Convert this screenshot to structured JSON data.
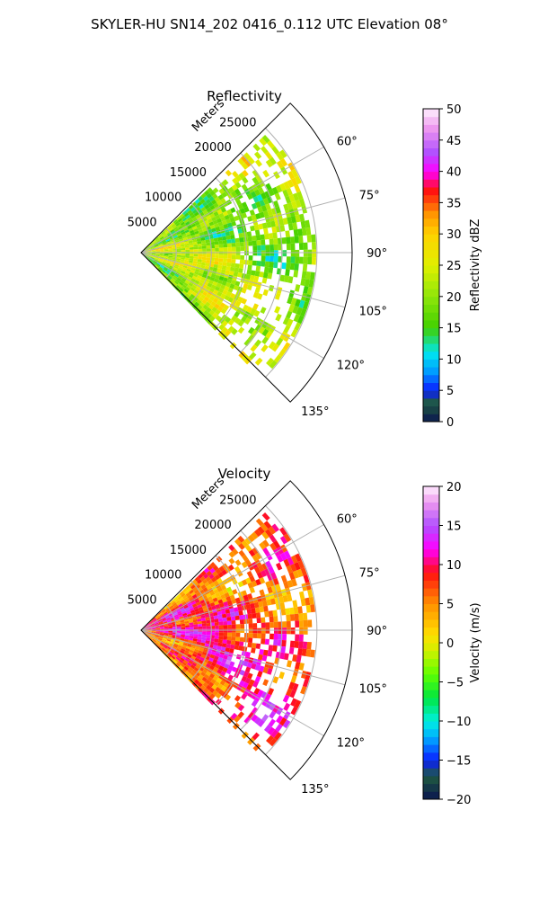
{
  "figure_title": "SKYLER-HU  SN14_202  0416_0.112 UTC Elevation 08°",
  "chart_data": [
    {
      "type": "heatmap",
      "projection": "polar-sector",
      "title": "Reflectivity",
      "radial_label": "Meters",
      "r_ticks": [
        5000,
        10000,
        15000,
        20000,
        25000
      ],
      "r_tick_labels": [
        "5000",
        "10000",
        "15000",
        "20000",
        "25000"
      ],
      "r_max": 30000,
      "theta_ticks": [
        60,
        75,
        90,
        105,
        120,
        135
      ],
      "theta_tick_labels": [
        "60°",
        "75°",
        "90°",
        "105°",
        "120°",
        "135°"
      ],
      "theta_range": [
        45,
        135
      ],
      "grid": true,
      "colorbar": {
        "label": "Reflectivity dBZ",
        "range": [
          0,
          50
        ],
        "ticks": [
          0,
          5,
          10,
          15,
          20,
          25,
          30,
          35,
          40,
          45,
          50
        ],
        "tick_labels": [
          "0",
          "5",
          "10",
          "15",
          "20",
          "25",
          "30",
          "35",
          "40",
          "45",
          "50"
        ],
        "stops": [
          {
            "v": 0,
            "c": "#0b1650"
          },
          {
            "v": 3,
            "c": "#1f5a40"
          },
          {
            "v": 5,
            "c": "#0a1dff"
          },
          {
            "v": 8,
            "c": "#009bff"
          },
          {
            "v": 11,
            "c": "#00e6f0"
          },
          {
            "v": 15,
            "c": "#40d000"
          },
          {
            "v": 20,
            "c": "#8fe60a"
          },
          {
            "v": 25,
            "c": "#e0f000"
          },
          {
            "v": 30,
            "c": "#ffd200"
          },
          {
            "v": 33,
            "c": "#ff9a00"
          },
          {
            "v": 37,
            "c": "#ff1010"
          },
          {
            "v": 40,
            "c": "#ff00ff"
          },
          {
            "v": 43,
            "c": "#b050ff"
          },
          {
            "v": 47,
            "c": "#ee99ee"
          },
          {
            "v": 50,
            "c": "#fff0ff"
          }
        ]
      },
      "echo_mean": 21,
      "echo_spread": 9,
      "echo_max_range": 24500
    },
    {
      "type": "heatmap",
      "projection": "polar-sector",
      "title": "Velocity",
      "radial_label": "Meters",
      "r_ticks": [
        5000,
        10000,
        15000,
        20000,
        25000
      ],
      "r_tick_labels": [
        "5000",
        "10000",
        "15000",
        "20000",
        "25000"
      ],
      "r_max": 30000,
      "theta_ticks": [
        60,
        75,
        90,
        105,
        120,
        135
      ],
      "theta_tick_labels": [
        "60°",
        "75°",
        "90°",
        "105°",
        "120°",
        "135°"
      ],
      "theta_range": [
        45,
        135
      ],
      "grid": true,
      "colorbar": {
        "label": "Velocity (m/s)",
        "range": [
          -20,
          20
        ],
        "ticks": [
          -20,
          -15,
          -10,
          -5,
          0,
          5,
          10,
          15,
          20
        ],
        "tick_labels": [
          "−20",
          "−15",
          "−10",
          "−5",
          "0",
          "5",
          "10",
          "15",
          "20"
        ],
        "stops": [
          {
            "v": -20,
            "c": "#0b1650"
          },
          {
            "v": -17,
            "c": "#1f5a40"
          },
          {
            "v": -15,
            "c": "#0a1dff"
          },
          {
            "v": -12,
            "c": "#00b0ff"
          },
          {
            "v": -10,
            "c": "#00f0e0"
          },
          {
            "v": -7,
            "c": "#00e640"
          },
          {
            "v": -4,
            "c": "#60ff00"
          },
          {
            "v": -1,
            "c": "#d0f000"
          },
          {
            "v": 1,
            "c": "#ffe000"
          },
          {
            "v": 5,
            "c": "#ff9000"
          },
          {
            "v": 9,
            "c": "#ff1010"
          },
          {
            "v": 12,
            "c": "#ff00ff"
          },
          {
            "v": 15,
            "c": "#b050ff"
          },
          {
            "v": 18,
            "c": "#ee99ee"
          },
          {
            "v": 20,
            "c": "#fff0ff"
          }
        ]
      },
      "echo_mean": 8,
      "echo_spread": 7,
      "echo_max_range": 24500
    }
  ]
}
